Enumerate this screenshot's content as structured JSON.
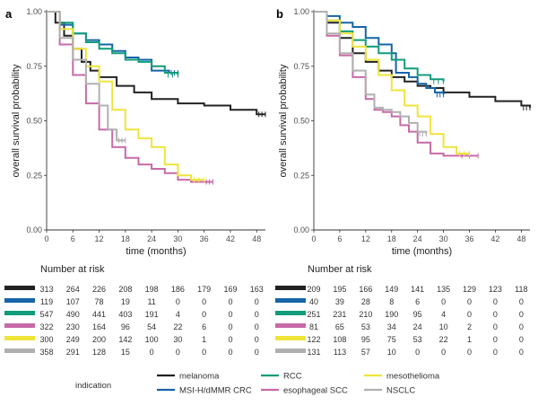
{
  "chart_data": {
    "type": "line",
    "legend": {
      "title": "indication",
      "position": "bottom",
      "entries": [
        {
          "name": "melanoma",
          "color": "#222222"
        },
        {
          "name": "MSI-H/dMMR CRC",
          "color": "#1565a8"
        },
        {
          "name": "RCC",
          "color": "#119c7a"
        },
        {
          "name": "esophageal SCC",
          "color": "#c76aa8"
        },
        {
          "name": "mesothelioma",
          "color": "#efe43a"
        },
        {
          "name": "NSCLC",
          "color": "#b0b0b0"
        }
      ]
    },
    "panels": [
      {
        "label": "a",
        "xlabel": "time (months)",
        "ylabel": "overall survival probability",
        "xlim": [
          0,
          50
        ],
        "ylim": [
          0,
          1
        ],
        "xticks": [
          "0",
          "6",
          "12",
          "18",
          "24",
          "30",
          "36",
          "42",
          "48"
        ],
        "yticks": [
          "0.00",
          "0.25",
          "0.50",
          "0.75",
          "1.00"
        ],
        "series": [
          {
            "name": "melanoma",
            "points": [
              [
                0,
                1
              ],
              [
                2,
                0.95
              ],
              [
                4,
                0.89
              ],
              [
                6,
                0.83
              ],
              [
                8,
                0.77
              ],
              [
                10,
                0.73
              ],
              [
                12,
                0.7
              ],
              [
                16,
                0.66
              ],
              [
                20,
                0.63
              ],
              [
                24,
                0.6
              ],
              [
                30,
                0.58
              ],
              [
                36,
                0.57
              ],
              [
                42,
                0.55
              ],
              [
                48,
                0.53
              ],
              [
                50,
                0.53
              ]
            ]
          },
          {
            "name": "MSI-H/dMMR CRC",
            "points": [
              [
                0,
                1
              ],
              [
                3,
                0.94
              ],
              [
                6,
                0.9
              ],
              [
                9,
                0.87
              ],
              [
                12,
                0.85
              ],
              [
                15,
                0.82
              ],
              [
                18,
                0.79
              ],
              [
                21,
                0.78
              ],
              [
                24,
                0.73
              ],
              [
                28,
                0.72
              ],
              [
                30,
                0.72
              ]
            ]
          },
          {
            "name": "RCC",
            "points": [
              [
                0,
                1
              ],
              [
                3,
                0.95
              ],
              [
                6,
                0.9
              ],
              [
                9,
                0.86
              ],
              [
                12,
                0.83
              ],
              [
                15,
                0.81
              ],
              [
                18,
                0.78
              ],
              [
                21,
                0.77
              ],
              [
                24,
                0.75
              ],
              [
                27,
                0.72
              ],
              [
                30,
                0.71
              ]
            ]
          },
          {
            "name": "esophageal SCC",
            "points": [
              [
                0,
                1
              ],
              [
                3,
                0.85
              ],
              [
                6,
                0.71
              ],
              [
                9,
                0.58
              ],
              [
                12,
                0.46
              ],
              [
                15,
                0.38
              ],
              [
                18,
                0.33
              ],
              [
                21,
                0.3
              ],
              [
                24,
                0.28
              ],
              [
                27,
                0.26
              ],
              [
                30,
                0.23
              ],
              [
                33,
                0.22
              ],
              [
                36,
                0.22
              ],
              [
                38,
                0.22
              ]
            ]
          },
          {
            "name": "mesothelioma",
            "points": [
              [
                0,
                1
              ],
              [
                3,
                0.92
              ],
              [
                6,
                0.83
              ],
              [
                9,
                0.75
              ],
              [
                12,
                0.68
              ],
              [
                15,
                0.55
              ],
              [
                18,
                0.46
              ],
              [
                21,
                0.42
              ],
              [
                24,
                0.38
              ],
              [
                27,
                0.3
              ],
              [
                30,
                0.25
              ],
              [
                33,
                0.23
              ],
              [
                36,
                0.23
              ]
            ]
          },
          {
            "name": "NSCLC",
            "points": [
              [
                0,
                1
              ],
              [
                3,
                0.88
              ],
              [
                6,
                0.78
              ],
              [
                9,
                0.67
              ],
              [
                12,
                0.57
              ],
              [
                14,
                0.46
              ],
              [
                16,
                0.41
              ],
              [
                18,
                0.41
              ]
            ]
          }
        ],
        "risk_table": {
          "title": "Number at risk",
          "rows": [
            {
              "name": "melanoma",
              "values": [
                313,
                264,
                226,
                208,
                198,
                186,
                179,
                169,
                163
              ]
            },
            {
              "name": "MSI-H/dMMR CRC",
              "values": [
                119,
                107,
                78,
                19,
                11,
                0,
                0,
                0,
                0
              ]
            },
            {
              "name": "RCC",
              "values": [
                547,
                490,
                441,
                403,
                191,
                4,
                0,
                0,
                0
              ]
            },
            {
              "name": "esophageal SCC",
              "values": [
                322,
                230,
                164,
                96,
                54,
                22,
                6,
                0,
                0
              ]
            },
            {
              "name": "mesothelioma",
              "values": [
                300,
                249,
                200,
                142,
                100,
                30,
                1,
                0,
                0
              ]
            },
            {
              "name": "NSCLC",
              "values": [
                358,
                291,
                128,
                15,
                0,
                0,
                0,
                0,
                0
              ]
            }
          ]
        }
      },
      {
        "label": "b",
        "xlabel": "time (months)",
        "ylabel": "overall survival probability",
        "xlim": [
          0,
          50
        ],
        "ylim": [
          0,
          1
        ],
        "xticks": [
          "0",
          "6",
          "12",
          "18",
          "24",
          "30",
          "36",
          "42",
          "48"
        ],
        "yticks": [
          "0.00",
          "0.25",
          "0.50",
          "0.75",
          "1.00"
        ],
        "series": [
          {
            "name": "melanoma",
            "points": [
              [
                0,
                1
              ],
              [
                3,
                0.95
              ],
              [
                6,
                0.88
              ],
              [
                9,
                0.81
              ],
              [
                12,
                0.77
              ],
              [
                15,
                0.73
              ],
              [
                18,
                0.7
              ],
              [
                21,
                0.68
              ],
              [
                24,
                0.66
              ],
              [
                27,
                0.65
              ],
              [
                30,
                0.63
              ],
              [
                36,
                0.61
              ],
              [
                42,
                0.59
              ],
              [
                48,
                0.57
              ],
              [
                50,
                0.56
              ]
            ]
          },
          {
            "name": "MSI-H/dMMR CRC",
            "points": [
              [
                0,
                1
              ],
              [
                3,
                0.98
              ],
              [
                6,
                0.95
              ],
              [
                9,
                0.93
              ],
              [
                12,
                0.88
              ],
              [
                15,
                0.85
              ],
              [
                18,
                0.81
              ],
              [
                19,
                0.72
              ],
              [
                22,
                0.7
              ],
              [
                24,
                0.67
              ],
              [
                26,
                0.65
              ],
              [
                28,
                0.63
              ],
              [
                30,
                0.62
              ]
            ]
          },
          {
            "name": "RCC",
            "points": [
              [
                0,
                1
              ],
              [
                3,
                0.96
              ],
              [
                6,
                0.91
              ],
              [
                9,
                0.87
              ],
              [
                12,
                0.84
              ],
              [
                15,
                0.81
              ],
              [
                18,
                0.78
              ],
              [
                21,
                0.74
              ],
              [
                24,
                0.71
              ],
              [
                27,
                0.69
              ],
              [
                30,
                0.68
              ]
            ]
          },
          {
            "name": "esophageal SCC",
            "points": [
              [
                0,
                1
              ],
              [
                3,
                0.89
              ],
              [
                6,
                0.8
              ],
              [
                9,
                0.7
              ],
              [
                12,
                0.6
              ],
              [
                14,
                0.55
              ],
              [
                16,
                0.54
              ],
              [
                18,
                0.52
              ],
              [
                20,
                0.48
              ],
              [
                22,
                0.45
              ],
              [
                24,
                0.4
              ],
              [
                27,
                0.35
              ],
              [
                30,
                0.34
              ],
              [
                33,
                0.34
              ],
              [
                38,
                0.34
              ]
            ]
          },
          {
            "name": "mesothelioma",
            "points": [
              [
                0,
                1
              ],
              [
                3,
                0.96
              ],
              [
                6,
                0.9
              ],
              [
                9,
                0.84
              ],
              [
                12,
                0.78
              ],
              [
                15,
                0.71
              ],
              [
                18,
                0.64
              ],
              [
                21,
                0.57
              ],
              [
                24,
                0.52
              ],
              [
                27,
                0.44
              ],
              [
                30,
                0.38
              ],
              [
                33,
                0.35
              ],
              [
                36,
                0.35
              ]
            ]
          },
          {
            "name": "NSCLC",
            "points": [
              [
                0,
                1
              ],
              [
                3,
                0.9
              ],
              [
                6,
                0.81
              ],
              [
                9,
                0.73
              ],
              [
                12,
                0.62
              ],
              [
                14,
                0.56
              ],
              [
                16,
                0.55
              ],
              [
                18,
                0.54
              ],
              [
                20,
                0.52
              ],
              [
                22,
                0.49
              ],
              [
                24,
                0.45
              ],
              [
                26,
                0.44
              ]
            ]
          }
        ],
        "risk_table": {
          "title": "Number at risk",
          "rows": [
            {
              "name": "melanoma",
              "values": [
                209,
                195,
                166,
                149,
                141,
                135,
                129,
                123,
                118
              ]
            },
            {
              "name": "MSI-H/dMMR CRC",
              "values": [
                40,
                39,
                28,
                8,
                6,
                0,
                0,
                0,
                0
              ]
            },
            {
              "name": "RCC",
              "values": [
                251,
                231,
                210,
                190,
                95,
                4,
                0,
                0,
                0
              ]
            },
            {
              "name": "esophageal SCC",
              "values": [
                81,
                65,
                53,
                34,
                24,
                10,
                2,
                0,
                0
              ]
            },
            {
              "name": "mesothelioma",
              "values": [
                122,
                108,
                95,
                75,
                53,
                22,
                1,
                0,
                0
              ]
            },
            {
              "name": "NSCLC",
              "values": [
                131,
                113,
                57,
                10,
                0,
                0,
                0,
                0,
                0
              ]
            }
          ]
        }
      }
    ]
  }
}
